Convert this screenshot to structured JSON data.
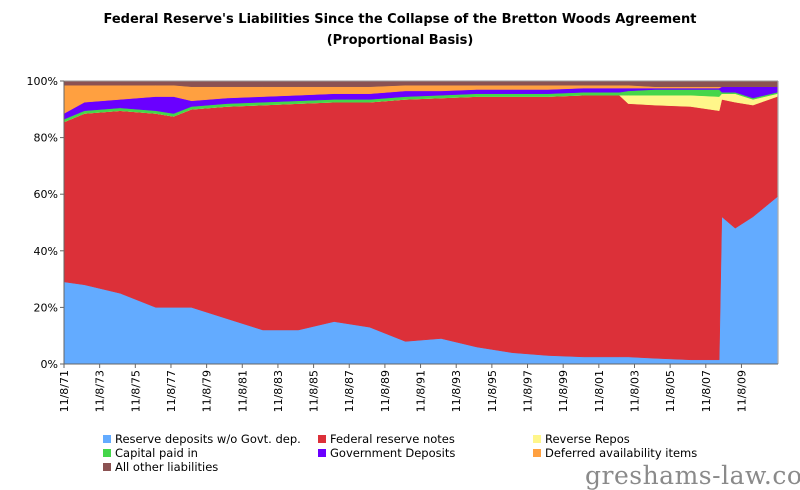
{
  "chart_data": {
    "type": "area",
    "stacked": true,
    "normalized": true,
    "title": "Federal Reserve's Liabilities Since the Collapse of the Bretton Woods Agreement",
    "subtitle": "(Proportional Basis)",
    "xlabel": "",
    "ylabel": "",
    "xlim": [
      1971.85,
      2011.9
    ],
    "ylim": [
      0,
      100
    ],
    "y_ticks": [
      "0%",
      "20%",
      "40%",
      "60%",
      "80%",
      "100%"
    ],
    "x_ticks": [
      "11/8/71",
      "11/8/73",
      "11/8/75",
      "11/8/77",
      "11/8/79",
      "11/8/81",
      "11/8/83",
      "11/8/85",
      "11/8/87",
      "11/8/89",
      "11/8/91",
      "11/8/93",
      "11/8/95",
      "11/8/97",
      "11/8/99",
      "11/8/01",
      "11/8/03",
      "11/8/05",
      "11/8/07",
      "11/8/09"
    ],
    "grid": false,
    "legend_position": "bottom",
    "x": [
      1971.85,
      1973,
      1975,
      1977,
      1978,
      1979,
      1981,
      1983,
      1985,
      1987,
      1989,
      1991,
      1993,
      1995,
      1997,
      1999,
      2001,
      2003,
      2003.5,
      2005,
      2007,
      2008.6,
      2008.75,
      2009.5,
      2010.5,
      2011.85
    ],
    "series": [
      {
        "name": "Reserve deposits w/o Govt. dep.",
        "color": "#63abff",
        "values": [
          29,
          28,
          25,
          20,
          20,
          20,
          16,
          12,
          12,
          15,
          13,
          8,
          9,
          6,
          4,
          3,
          2.5,
          2.5,
          2.5,
          2,
          1.5,
          1.5,
          52,
          48,
          52,
          59
        ]
      },
      {
        "name": "Federal reserve notes",
        "color": "#dc3039",
        "values": [
          56.5,
          60.5,
          64.5,
          68.5,
          67.5,
          70,
          75,
          79.5,
          80,
          77.5,
          79.5,
          85.5,
          85,
          88.5,
          90.5,
          91.5,
          92.5,
          92.5,
          89.5,
          89.5,
          89.5,
          88,
          41.5,
          44.5,
          39.5,
          35.5
        ]
      },
      {
        "name": "Reverse Repos",
        "color": "#fff68a",
        "values": [
          0,
          0,
          0,
          0,
          0,
          0,
          0,
          0,
          0,
          0,
          0,
          0,
          0,
          0,
          0,
          0,
          0,
          0,
          3,
          3.5,
          4,
          5,
          2,
          3,
          2,
          1
        ]
      },
      {
        "name": "Capital paid in",
        "color": "#44d64a",
        "values": [
          1,
          1,
          1,
          1,
          1,
          1,
          1,
          1,
          1,
          1,
          1,
          1,
          1,
          1,
          1,
          1,
          1,
          1,
          1.5,
          2,
          2,
          2.5,
          0.5,
          0.5,
          0.5,
          0.5
        ]
      },
      {
        "name": "Government Deposits",
        "color": "#6a00ff",
        "values": [
          2,
          3,
          3,
          5,
          6,
          2,
          2,
          2,
          2,
          2,
          2,
          2,
          1.5,
          1.5,
          1.5,
          1.5,
          1.5,
          1.5,
          1,
          0.5,
          0.5,
          0.5,
          2,
          2,
          4,
          2
        ]
      },
      {
        "name": "Deferred availability items",
        "color": "#ffa040",
        "values": [
          10,
          6,
          5,
          4,
          4,
          5,
          4,
          3.5,
          3,
          2.5,
          2.5,
          2,
          2,
          1.5,
          1.5,
          1.5,
          1,
          1,
          1,
          0.5,
          0.5,
          0.5,
          0,
          0,
          0,
          0
        ]
      },
      {
        "name": "All other liabilities",
        "color": "#8b5252",
        "values": [
          1.5,
          1.5,
          1.5,
          1.5,
          1.5,
          2,
          2,
          2,
          2,
          2,
          2,
          1.5,
          1.5,
          1.5,
          1.5,
          1.5,
          1.5,
          1.5,
          1.5,
          2,
          2,
          2,
          2,
          2,
          2,
          2
        ]
      }
    ]
  },
  "legend": [
    {
      "label": "Reserve deposits w/o Govt. dep.",
      "color": "#63abff"
    },
    {
      "label": "Federal reserve notes",
      "color": "#dc3039"
    },
    {
      "label": "Reverse Repos",
      "color": "#fff68a"
    },
    {
      "label": "Capital paid in",
      "color": "#44d64a"
    },
    {
      "label": "Government Deposits",
      "color": "#6a00ff"
    },
    {
      "label": "Deferred availability items",
      "color": "#ffa040"
    },
    {
      "label": "All other liabilities",
      "color": "#8b5252"
    }
  ],
  "watermark": "greshams-law.com"
}
